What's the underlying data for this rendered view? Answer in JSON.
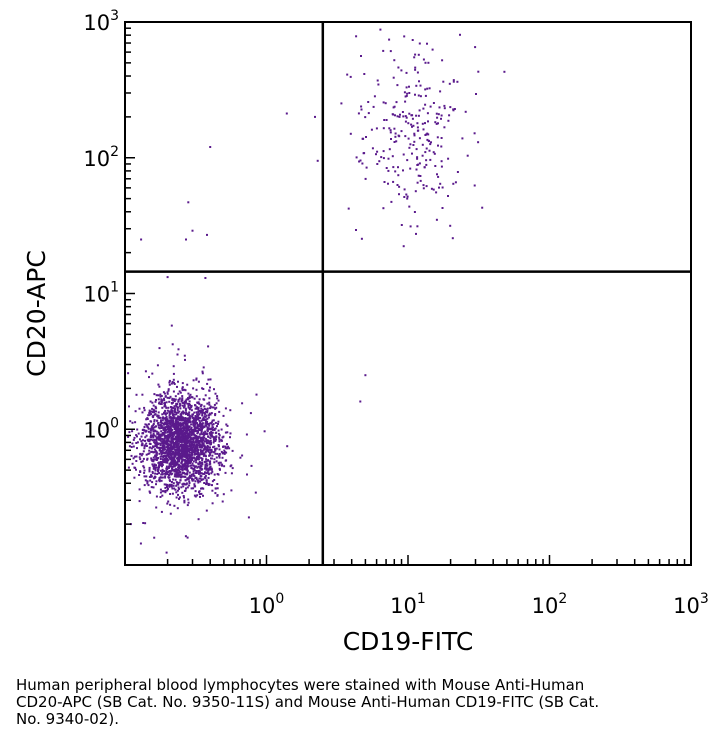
{
  "chart_data": {
    "type": "scatter",
    "title": "",
    "xlabel": "CD19-FITC",
    "ylabel": "CD20-APC",
    "x_scale": "log",
    "y_scale": "log",
    "xlim": [
      0.1,
      1000
    ],
    "ylim": [
      0.1,
      1000
    ],
    "x_tick_labels": [
      {
        "value": 1,
        "base": "10",
        "exp": "0"
      },
      {
        "value": 10,
        "base": "10",
        "exp": "1"
      },
      {
        "value": 100,
        "base": "10",
        "exp": "2"
      },
      {
        "value": 1000,
        "base": "10",
        "exp": "3"
      }
    ],
    "y_tick_labels": [
      {
        "value": 1,
        "base": "10",
        "exp": "0"
      },
      {
        "value": 10,
        "base": "10",
        "exp": "1"
      },
      {
        "value": 100,
        "base": "10",
        "exp": "2"
      },
      {
        "value": 1000,
        "base": "10",
        "exp": "3"
      }
    ],
    "quadrant_gates": {
      "x": 2.5,
      "y": 14.5
    },
    "point_color": "#5a1a8c",
    "populations": [
      {
        "center": [
          0.25,
          0.8
        ],
        "spread_log": [
          0.13,
          0.17
        ],
        "count": 2600
      },
      {
        "center": [
          10,
          150
        ],
        "spread_log": [
          0.19,
          0.3
        ],
        "count": 280
      }
    ],
    "outlier_points": [
      {
        "x": 0.4,
        "y": 120
      },
      {
        "x": 0.28,
        "y": 47
      },
      {
        "x": 0.3,
        "y": 29
      },
      {
        "x": 0.38,
        "y": 27
      },
      {
        "x": 0.27,
        "y": 25
      },
      {
        "x": 0.13,
        "y": 25
      },
      {
        "x": 0.37,
        "y": 13
      },
      {
        "x": 0.2,
        "y": 13.2
      },
      {
        "x": 5,
        "y": 2.5
      },
      {
        "x": 4.6,
        "y": 1.6
      },
      {
        "x": 2.2,
        "y": 200
      },
      {
        "x": 2.3,
        "y": 95
      },
      {
        "x": 48,
        "y": 430
      },
      {
        "x": 1.4,
        "y": 0.75
      },
      {
        "x": 0.85,
        "y": 1.8
      },
      {
        "x": 0.11,
        "y": 0.2
      }
    ]
  },
  "caption": "Human peripheral blood lymphocytes were stained with Mouse Anti-Human CD20-APC (SB Cat. No. 9350-11S) and Mouse Anti-Human CD19-FITC (SB Cat. No. 9340-02)."
}
